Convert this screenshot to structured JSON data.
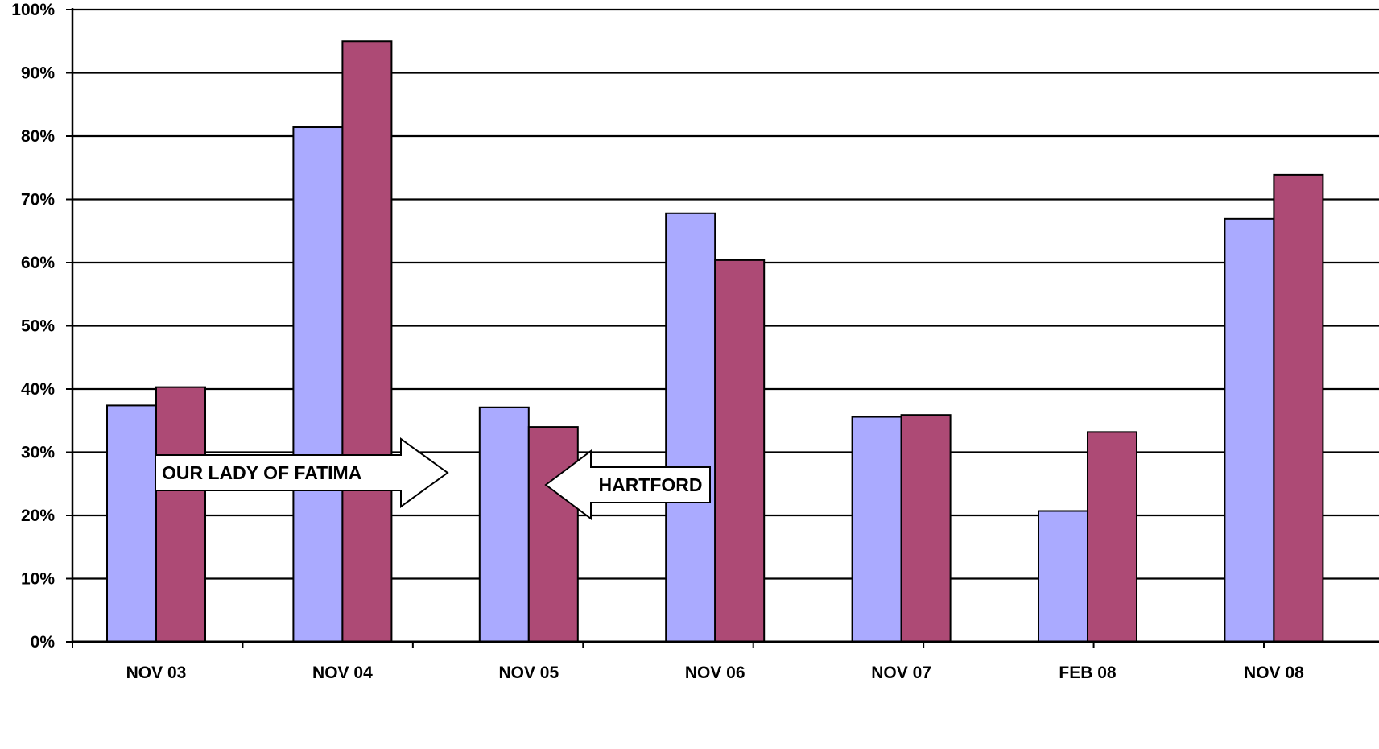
{
  "chart_data": {
    "type": "bar",
    "title": "",
    "xlabel": "",
    "ylabel": "",
    "ylim": [
      0,
      100
    ],
    "y_tick_labels": [
      "0%",
      "10%",
      "20%",
      "30%",
      "40%",
      "50%",
      "60%",
      "70%",
      "80%",
      "90%",
      "100%"
    ],
    "grid": true,
    "legend": "none",
    "categories": [
      "NOV 03",
      "NOV 04",
      "NOV 05",
      "NOV 06",
      "NOV 07",
      "FEB 08",
      "NOV 08"
    ],
    "series": [
      {
        "values": [
          37.4,
          81.4,
          37.1,
          67.8,
          35.6,
          20.7,
          66.9
        ],
        "color": "#aaaaff"
      },
      {
        "values": [
          40.3,
          95.0,
          34.0,
          60.4,
          35.9,
          33.2,
          73.9
        ],
        "color": "#ad4a75"
      }
    ],
    "annotations": [
      {
        "text": "OUR LADY OF FATIMA",
        "arrow": "right",
        "target_series": 0
      },
      {
        "text": "HARTFORD",
        "arrow": "left",
        "target_series": 1
      }
    ]
  }
}
